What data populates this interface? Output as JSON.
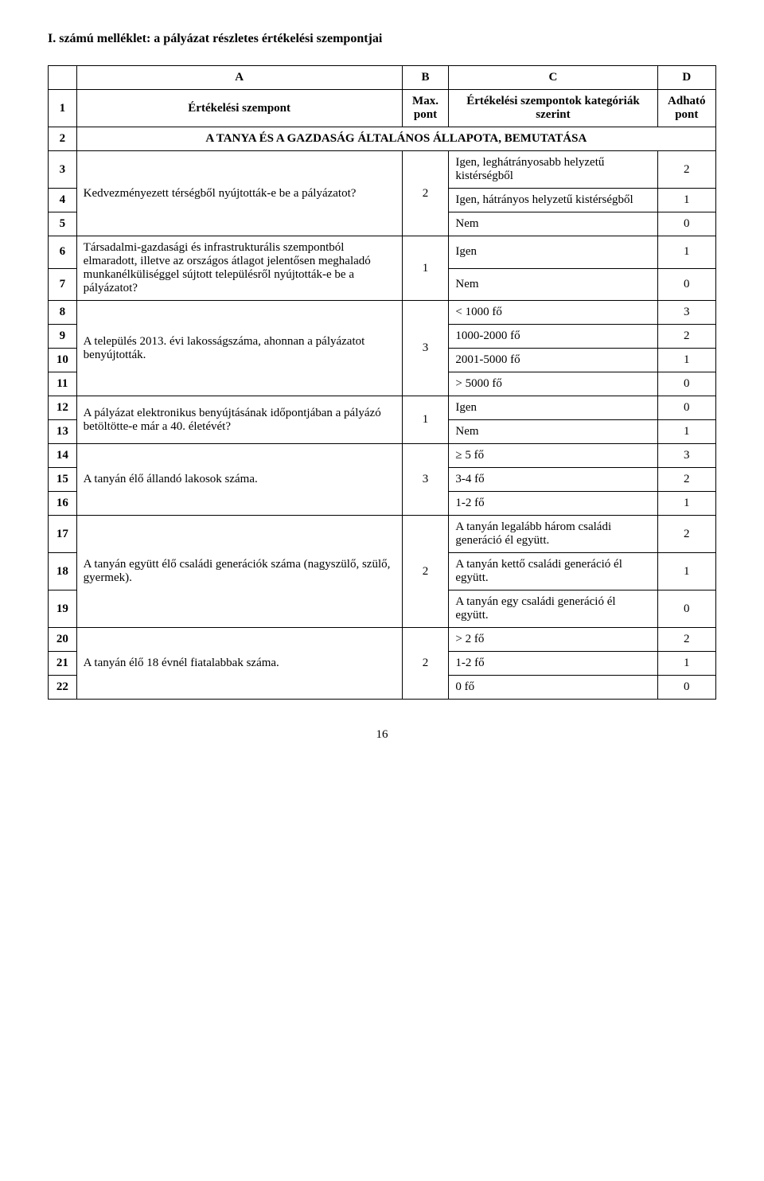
{
  "title": "I. számú melléklet: a pályázat részletes értékelési szempontjai",
  "header": {
    "A": "A",
    "B": "B",
    "C": "C",
    "D": "D",
    "row1_num": "1",
    "row1_label": "Értékelési szempont",
    "row1_max": "Max. pont",
    "row1_crit": "Értékelési szempontok kategóriák szerint",
    "row1_pts": "Adható pont"
  },
  "section": {
    "num": "2",
    "label": "A TANYA ÉS A GAZDASÁG ÁLTALÁNOS ÁLLAPOTA, BEMUTATÁSA"
  },
  "groups": [
    {
      "desc": "Kedvezményezett térségből nyújtották-e be a pályázatot?",
      "max": "2",
      "rows": [
        {
          "num": "3",
          "crit": "Igen, leghátrányosabb helyzetű kistérségből",
          "pts": "2"
        },
        {
          "num": "4",
          "crit": "Igen, hátrányos helyzetű kistérségből",
          "pts": "1"
        },
        {
          "num": "5",
          "crit": "Nem",
          "pts": "0"
        }
      ]
    },
    {
      "desc": "Társadalmi-gazdasági és infrastrukturális szempontból elmaradott, illetve az országos átlagot jelentősen meghaladó munkanélküliséggel sújtott településről nyújtották-e be a pályázatot?",
      "max": "1",
      "rows": [
        {
          "num": "6",
          "crit": "Igen",
          "pts": "1"
        },
        {
          "num": "7",
          "crit": "Nem",
          "pts": "0"
        }
      ]
    },
    {
      "desc": "A település 2013. évi lakosságszáma, ahonnan a pályázatot benyújtották.",
      "max": "3",
      "rows": [
        {
          "num": "8",
          "crit": "< 1000 fő",
          "pts": "3"
        },
        {
          "num": "9",
          "crit": "1000-2000 fő",
          "pts": "2"
        },
        {
          "num": "10",
          "crit": "2001-5000 fő",
          "pts": "1"
        },
        {
          "num": "11",
          "crit": "> 5000 fő",
          "pts": "0"
        }
      ]
    },
    {
      "desc": "A pályázat elektronikus benyújtásának időpontjában a pályázó betöltötte-e már a 40. életévét?",
      "max": "1",
      "rows": [
        {
          "num": "12",
          "crit": "Igen",
          "pts": "0"
        },
        {
          "num": "13",
          "crit": "Nem",
          "pts": "1"
        }
      ]
    },
    {
      "desc": "A tanyán élő állandó lakosok száma.",
      "max": "3",
      "rows": [
        {
          "num": "14",
          "crit": "≥ 5 fő",
          "pts": "3"
        },
        {
          "num": "15",
          "crit": "3-4 fő",
          "pts": "2"
        },
        {
          "num": "16",
          "crit": "1-2 fő",
          "pts": "1"
        }
      ]
    },
    {
      "desc": "A tanyán együtt élő családi generációk száma (nagyszülő, szülő, gyermek).",
      "max": "2",
      "rows": [
        {
          "num": "17",
          "crit": "A tanyán legalább három családi generáció él együtt.",
          "pts": "2"
        },
        {
          "num": "18",
          "crit": "A tanyán kettő családi generáció él együtt.",
          "pts": "1"
        },
        {
          "num": "19",
          "crit": "A tanyán egy családi generáció él együtt.",
          "pts": "0"
        }
      ]
    },
    {
      "desc": "A tanyán élő 18 évnél fiatalabbak száma.",
      "max": "2",
      "rows": [
        {
          "num": "20",
          "crit": "> 2 fő",
          "pts": "2"
        },
        {
          "num": "21",
          "crit": "1-2 fő",
          "pts": "1"
        },
        {
          "num": "22",
          "crit": "0 fő",
          "pts": "0"
        }
      ]
    }
  ],
  "pageNumber": "16"
}
